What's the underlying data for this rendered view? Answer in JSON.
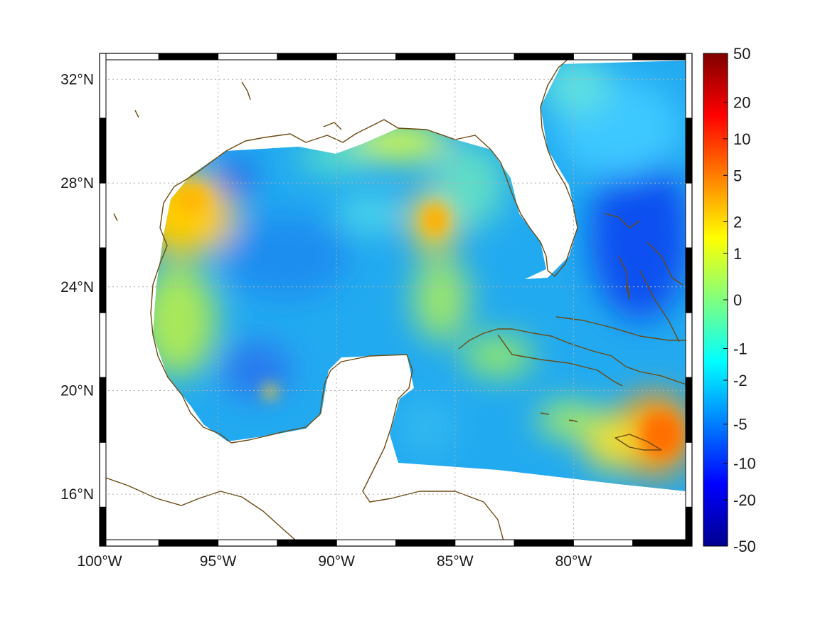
{
  "map": {
    "lon_range": [
      -100,
      -75
    ],
    "lat_range": [
      14,
      33
    ],
    "grid": "dotted",
    "projection": "equirectangular",
    "x_ticks": [
      {
        "value": -100,
        "label": "100°W"
      },
      {
        "value": -95,
        "label": "95°W"
      },
      {
        "value": -90,
        "label": "90°W"
      },
      {
        "value": -85,
        "label": "85°W"
      },
      {
        "value": -80,
        "label": "80°W"
      }
    ],
    "y_ticks": [
      {
        "value": 32,
        "label": "32°N"
      },
      {
        "value": 28,
        "label": "28°N"
      },
      {
        "value": 24,
        "label": "24°N"
      },
      {
        "value": 20,
        "label": "20°N"
      },
      {
        "value": 16,
        "label": "16°N"
      }
    ],
    "frame_segments_deg": 2.5,
    "coastline_color": "#6b4a12",
    "field_description_colors": [
      "#00008f",
      "#0000ff",
      "#0080ff",
      "#00ffff",
      "#80ff80",
      "#ffff00",
      "#ff8000",
      "#ff0000",
      "#800000"
    ]
  },
  "colorbar": {
    "location": "right",
    "colormap": "jet",
    "ticks": [
      "50",
      "20",
      "10",
      "5",
      "2",
      "1",
      "0",
      "-1",
      "-2",
      "-5",
      "-10",
      "-20",
      "-50"
    ]
  }
}
